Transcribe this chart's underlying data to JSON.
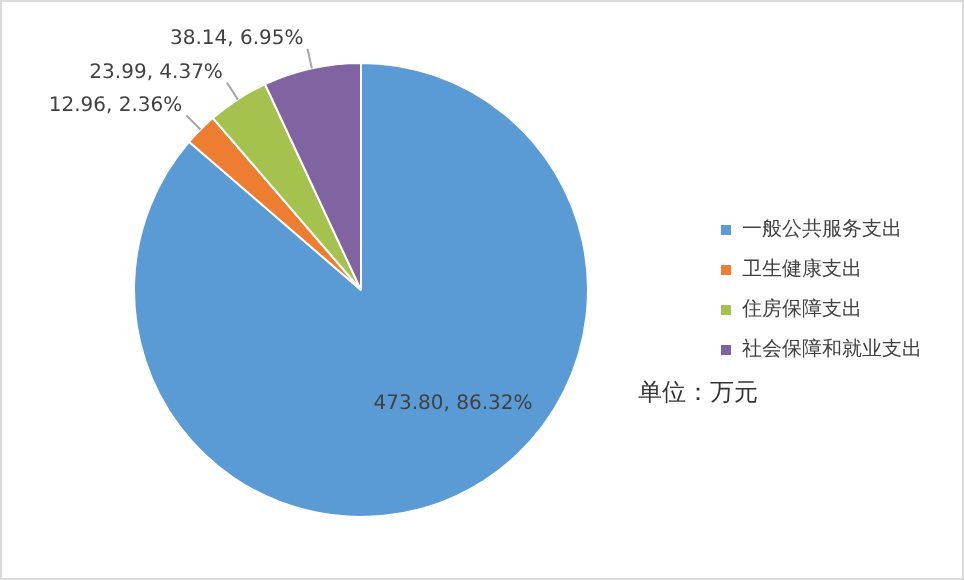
{
  "chart_data": {
    "type": "pie",
    "categories": [
      "一般公共服务支出",
      "卫生健康支出",
      "住房保障支出",
      "社会保障和就业支出"
    ],
    "values": [
      473.8,
      12.96,
      23.99,
      38.14
    ],
    "colors": [
      "#5b9bd5",
      "#ed7d31",
      "#a5c24f",
      "#8064a2"
    ],
    "value_labels": [
      "473.80, 86.32%",
      "12.96, 2.36%",
      "23.99, 4.37%",
      "38.14, 6.95%"
    ],
    "legend": "right",
    "annotations": [
      "单位：万元"
    ]
  }
}
